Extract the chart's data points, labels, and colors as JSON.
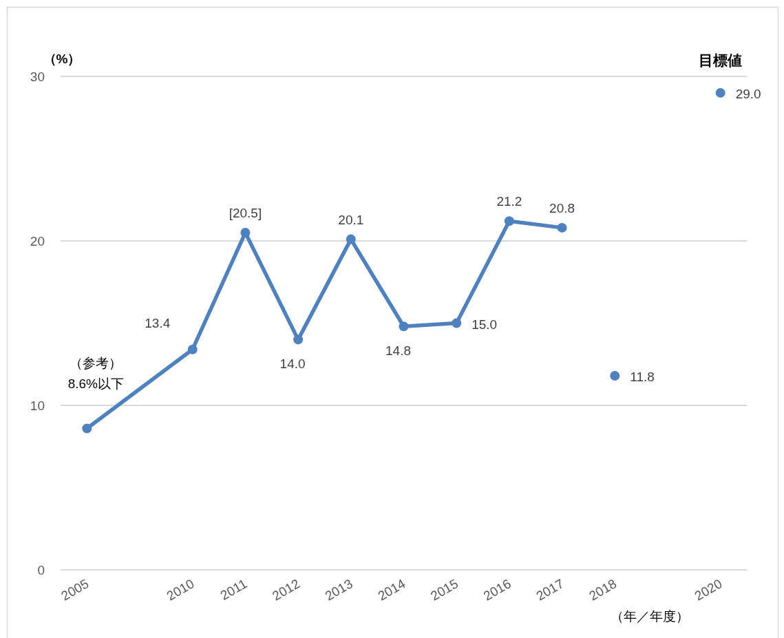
{
  "chart_data": {
    "type": "line",
    "ylabel": "（%）",
    "xlabel": "（年／年度）",
    "categories": [
      "2005",
      null,
      "2010",
      "2011",
      "2012",
      "2013",
      "2014",
      "2015",
      "2016",
      "2017",
      "2018",
      null,
      "2020"
    ],
    "ylim": [
      0,
      30
    ],
    "yticks": [
      0,
      10,
      20,
      30
    ],
    "grid": "y",
    "legend": false,
    "marker": "circle",
    "line_style": "solid",
    "series": [
      {
        "color": "#4f81bd",
        "values": [
          8.6,
          null,
          13.4,
          20.5,
          14.0,
          20.1,
          14.8,
          15.0,
          21.2,
          20.8,
          null,
          null,
          null
        ],
        "value_labels": [
          "（参考）\n8.6%以下",
          null,
          "13.4",
          "[20.5]",
          "14.0",
          "20.1",
          "14.8",
          "15.0",
          "21.2",
          "20.8",
          null,
          null,
          null
        ]
      },
      {
        "type": "scatter",
        "color": "#4f81bd",
        "values": [
          null,
          null,
          null,
          null,
          null,
          null,
          null,
          null,
          null,
          null,
          11.8,
          null,
          null
        ],
        "value_labels": [
          null,
          null,
          null,
          null,
          null,
          null,
          null,
          null,
          null,
          null,
          "11.8",
          null,
          null
        ]
      },
      {
        "type": "scatter",
        "name": "目標値",
        "color": "#4f81bd",
        "values": [
          null,
          null,
          null,
          null,
          null,
          null,
          null,
          null,
          null,
          null,
          null,
          null,
          29.0
        ],
        "value_labels": [
          null,
          null,
          null,
          null,
          null,
          null,
          null,
          null,
          null,
          null,
          null,
          null,
          "29.0"
        ]
      }
    ]
  }
}
